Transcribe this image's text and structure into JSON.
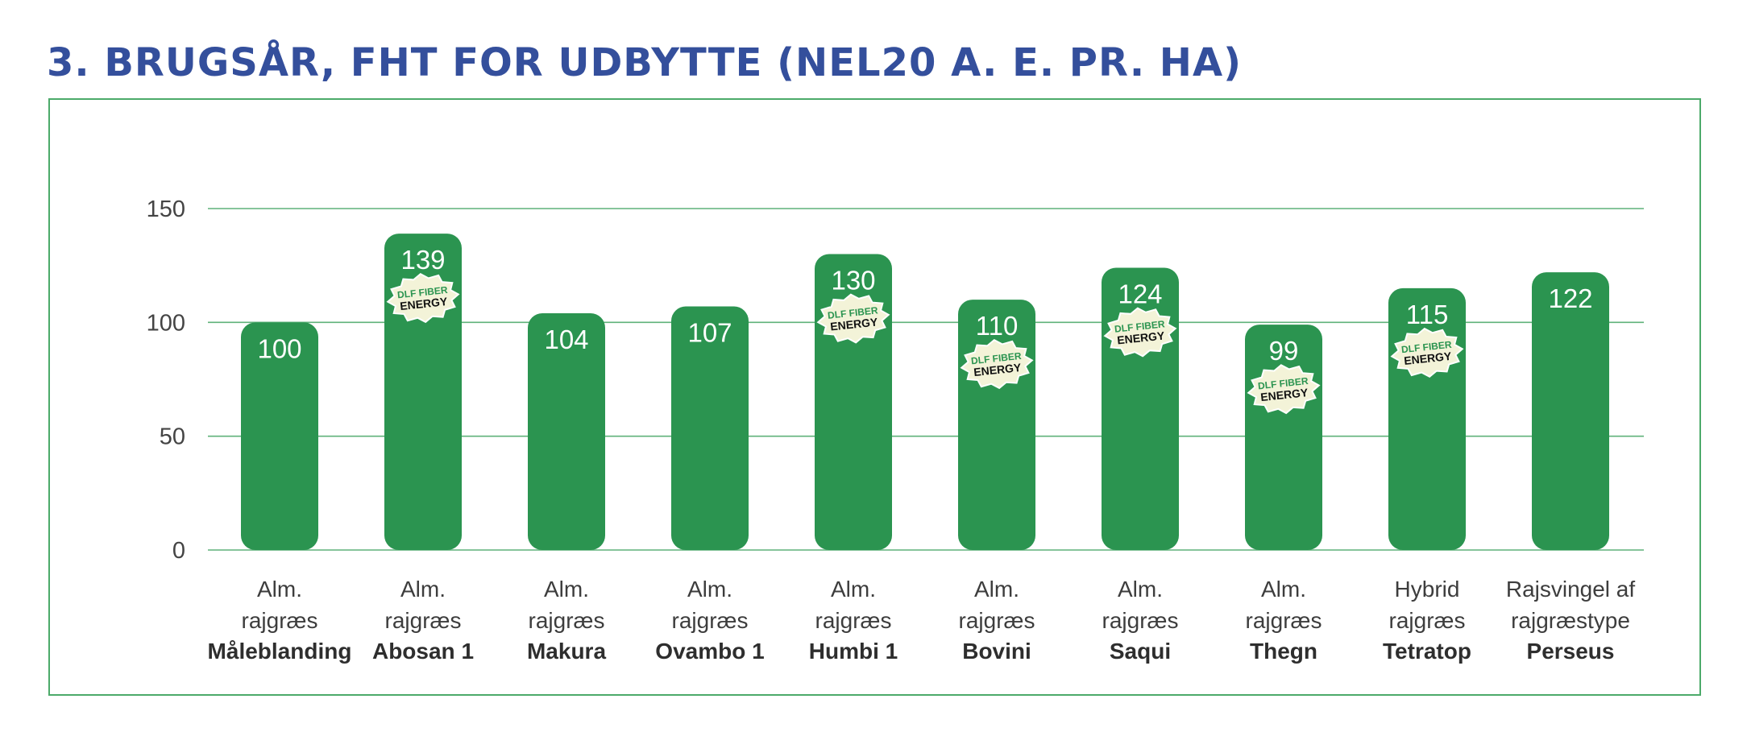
{
  "header": {
    "title": "3. BRUGSÅR, FHT FOR UDBYTTE (NEL20 A. E. PR. HA)"
  },
  "chart_data": {
    "type": "bar",
    "title": "3. BRUGSÅR, FHT FOR UDBYTTE (NEL20 A. E. PR. HA)",
    "xlabel": "",
    "ylabel": "",
    "ylim": [
      0,
      150
    ],
    "yticks": [
      0,
      50,
      100,
      150
    ],
    "grid": true,
    "colors": {
      "bar": "#2b9450",
      "grid": "#5fb27a",
      "badge_fill": "#f3f3d8",
      "badge_text_green": "#2b9450",
      "badge_text_dark": "#111111"
    },
    "categories": [
      {
        "line1": "Alm.",
        "line2": "rajgræs",
        "name": "Måleblanding"
      },
      {
        "line1": "Alm.",
        "line2": "rajgræs",
        "name": "Abosan 1"
      },
      {
        "line1": "Alm.",
        "line2": "rajgræs",
        "name": "Makura"
      },
      {
        "line1": "Alm.",
        "line2": "rajgræs",
        "name": "Ovambo 1"
      },
      {
        "line1": "Alm.",
        "line2": "rajgræs",
        "name": "Humbi 1"
      },
      {
        "line1": "Alm.",
        "line2": "rajgræs",
        "name": "Bovini"
      },
      {
        "line1": "Alm.",
        "line2": "rajgræs",
        "name": "Saqui"
      },
      {
        "line1": "Alm.",
        "line2": "rajgræs",
        "name": "Thegn"
      },
      {
        "line1": "Hybrid",
        "line2": "rajgræs",
        "name": "Tetratop"
      },
      {
        "line1": "Rajsvingel af",
        "line2": "rajgræstype",
        "name": "Perseus"
      }
    ],
    "values": [
      100,
      139,
      104,
      107,
      130,
      110,
      124,
      99,
      115,
      122
    ],
    "badges": [
      false,
      true,
      false,
      false,
      true,
      true,
      true,
      true,
      true,
      false
    ],
    "badge_text": {
      "line1": "DLF FIBER",
      "line2": "ENERGY"
    }
  }
}
